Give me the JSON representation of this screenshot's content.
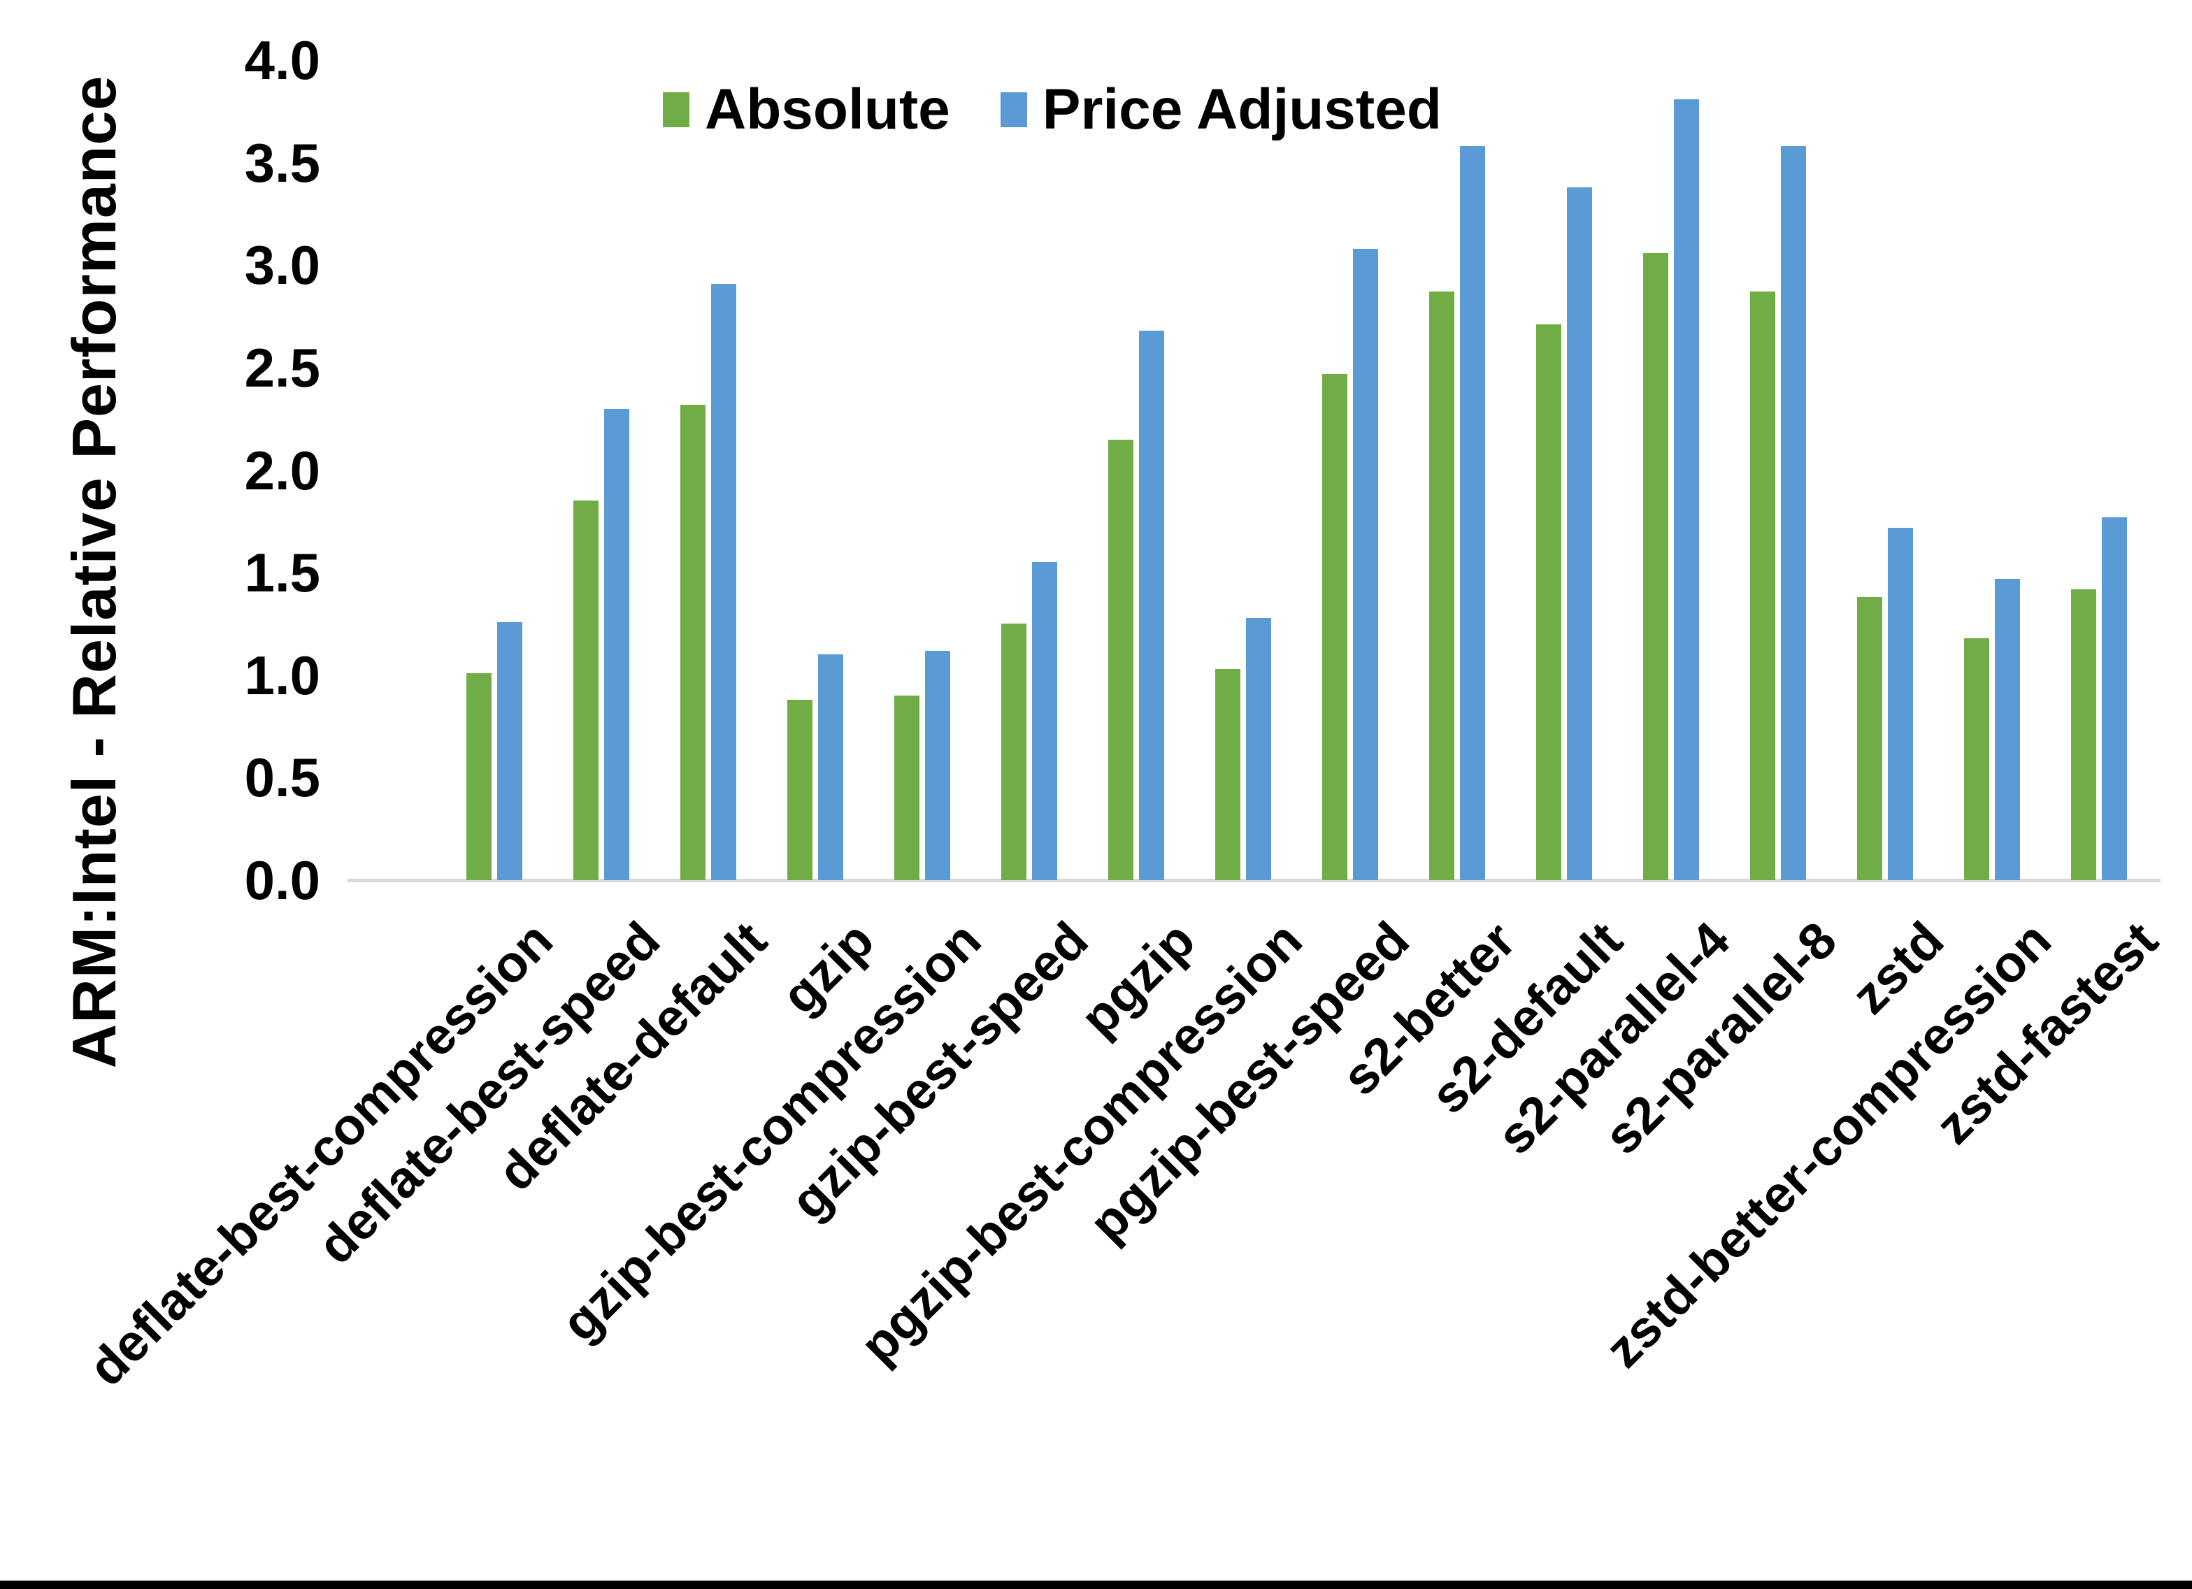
{
  "chart_data": {
    "type": "bar",
    "title": "",
    "ylabel": "ARM:Intel - Relative Performance",
    "xlabel": "",
    "ylim": [
      0.0,
      4.0
    ],
    "ytick_step": 0.5,
    "yticks": [
      "4.0",
      "3.5",
      "3.0",
      "2.5",
      "2.0",
      "1.5",
      "1.0",
      "0.5",
      "0.0"
    ],
    "grid": false,
    "legend_position": "top-center",
    "categories": [
      "deflate-best-compression",
      "deflate-best-speed",
      "deflate-default",
      "gzip",
      "gzip-best-compression",
      "gzip-best-speed",
      "pgzip",
      "pgzip-best-compression",
      "pgzip-best-speed",
      "s2-better",
      "s2-default",
      "s2-parallel-4",
      "s2-parallel-8",
      "zstd",
      "zstd-better-compression",
      "zstd-fastest"
    ],
    "series": [
      {
        "name": "Absolute",
        "color": "#70AD47",
        "values": [
          1.01,
          1.85,
          2.32,
          0.88,
          0.9,
          1.25,
          2.15,
          1.03,
          2.47,
          2.87,
          2.71,
          3.06,
          2.87,
          1.38,
          1.18,
          1.42
        ]
      },
      {
        "name": "Price Adjusted",
        "color": "#5B9BD5",
        "values": [
          1.26,
          2.3,
          2.91,
          1.1,
          1.12,
          1.55,
          2.68,
          1.28,
          3.08,
          3.58,
          3.38,
          3.81,
          3.58,
          1.72,
          1.47,
          1.77
        ]
      }
    ]
  },
  "colors": {
    "background": "#FFFFFF",
    "axis_line": "#D9D9D9",
    "text": "#000000",
    "bottom_bar": "#000000"
  }
}
